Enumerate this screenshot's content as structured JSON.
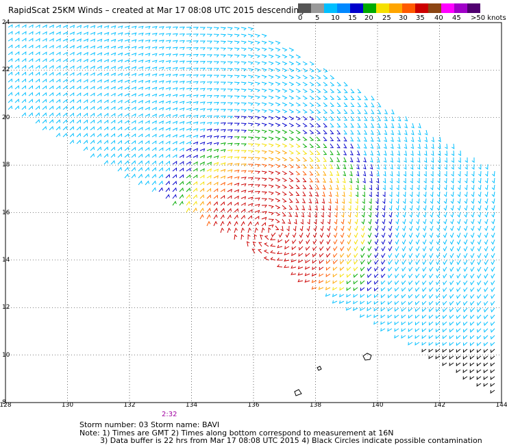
{
  "title": "RapidScat 25KM Winds – created at Mar 17 08:08 UTC 2015 descending",
  "legend": {
    "colors": [
      "#555555",
      "#999999",
      "#00bfff",
      "#0088ff",
      "#0000cc",
      "#00aa00",
      "#f5e000",
      "#ffa500",
      "#ff5a00",
      "#cc0000",
      "#8b4513",
      "#ff00ff",
      "#a000c8",
      "#500070"
    ],
    "labels": [
      "0",
      "5",
      "10",
      "15",
      "20",
      "25",
      "30",
      "35",
      "40",
      "45",
      ">50 knots"
    ]
  },
  "axes": {
    "lon": [
      "128",
      "130",
      "132",
      "134",
      "136",
      "138",
      "140",
      "142",
      "144"
    ],
    "lat": [
      "8",
      "10",
      "12",
      "14",
      "16",
      "18",
      "20",
      "22",
      "24"
    ],
    "lon_range": [
      128,
      144
    ],
    "lat_range": [
      8,
      24
    ],
    "grid": "dotted"
  },
  "storm_center": {
    "lon": 136.6,
    "lat": 15.2
  },
  "time_label": "2:32",
  "footer": {
    "line1": "Storm number: 03     Storm name: BAVI",
    "line2": "Note: 1) Times are GMT  2) Times along bottom correspond to measurement at 16N",
    "line3": "3) Data buffer is 22 hrs from Mar 17 08:08 UTC 2015  4) Black Circles indicate possible contamination"
  }
}
